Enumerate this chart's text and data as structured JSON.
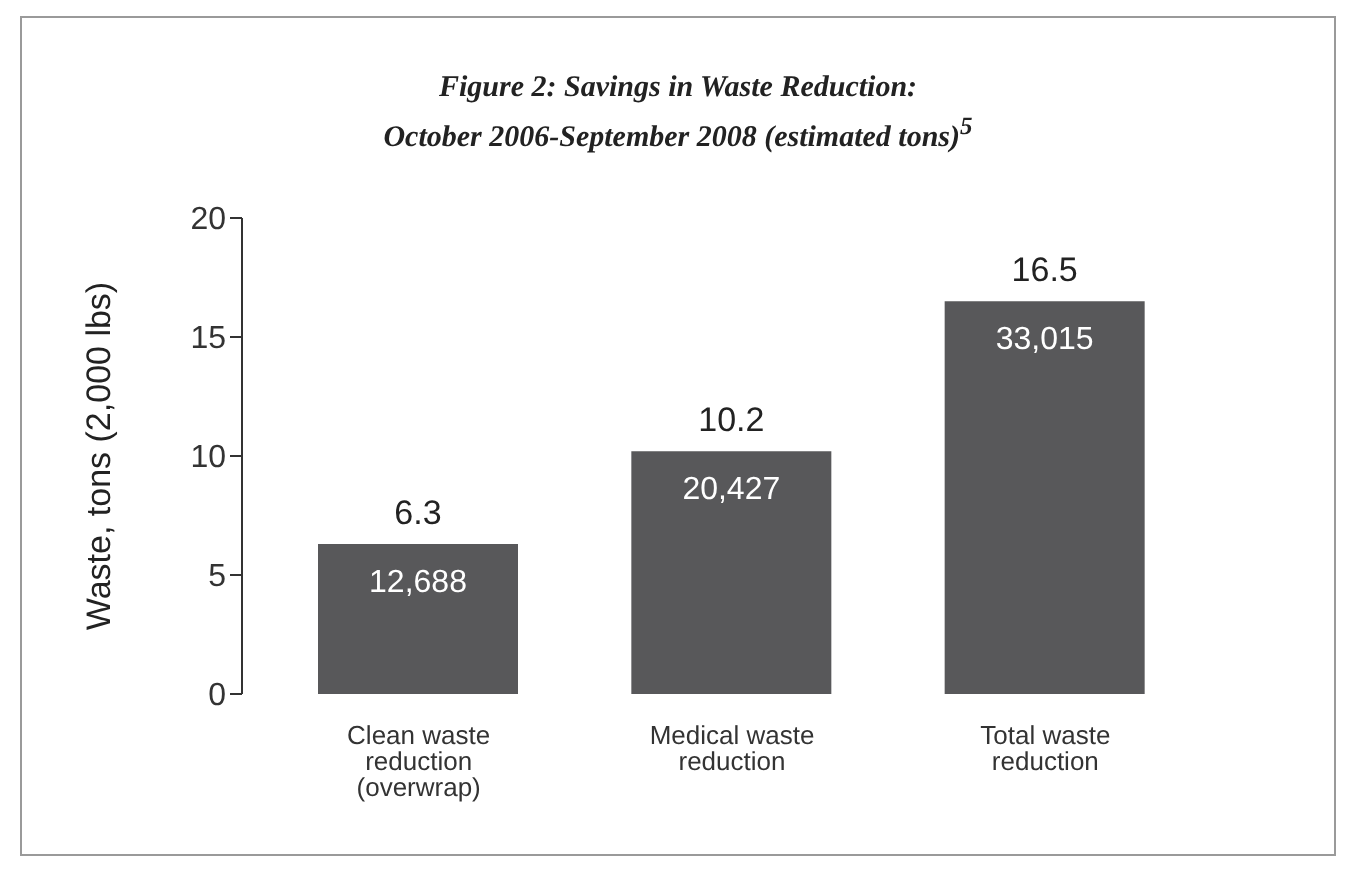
{
  "chart_data": {
    "type": "bar",
    "title": "Figure 2: Savings in Waste Reduction:",
    "subtitle": "October 2006-September 2008 (estimated tons)$^{5}$",
    "ylabel": "Waste, tons (2,000 lbs)",
    "categories": [
      "Clean waste reduction (overwrap)",
      "Medical waste reduction",
      "Total waste reduction"
    ],
    "values": [
      6.3,
      10.2,
      16.5
    ],
    "color": "#58585a",
    "data_labels": true,
    "annotations": [
      "12,688",
      "20,427",
      "33,015"
    ],
    "ylim": [
      0,
      20
    ],
    "yticks": [
      0,
      5,
      10,
      15,
      20
    ]
  }
}
